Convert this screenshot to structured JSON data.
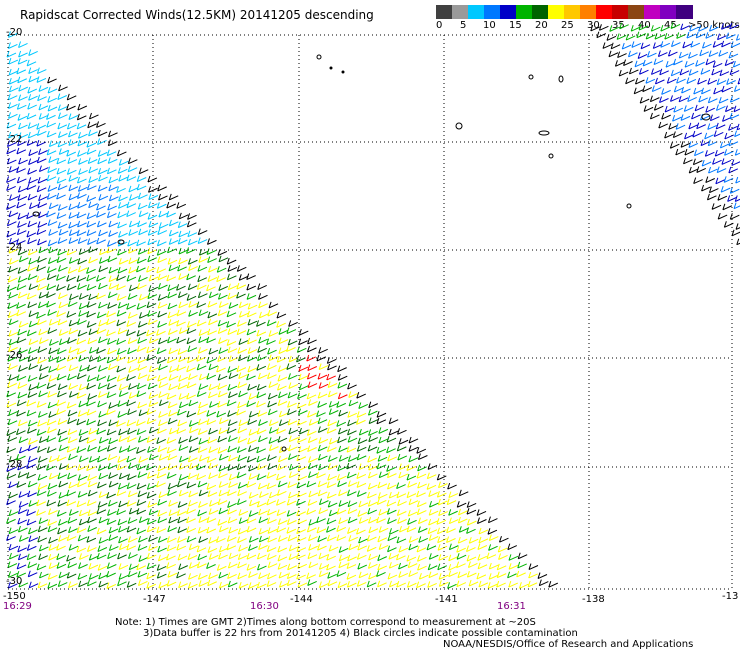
{
  "title": "Rapidscat Corrected Winds(12.5KM) 20141205 descending",
  "legend": {
    "colors": [
      "#404040",
      "#9a9a9a",
      "#00c8ff",
      "#0078ff",
      "#0000c8",
      "#00b400",
      "#006400",
      "#ffff00",
      "#ffc800",
      "#ff8000",
      "#ff0000",
      "#c80000",
      "#8b4513",
      "#c000c0",
      "#8000c0",
      "#400080"
    ],
    "tick_labels": [
      "0",
      "5",
      "10",
      "15",
      "20",
      "25",
      "30",
      "35",
      "40",
      "45",
      ">50 knots"
    ]
  },
  "axes": {
    "lat_labels": [
      "-20",
      "-22",
      "-24",
      "-26",
      "-28",
      "-30"
    ],
    "lon_labels": [
      "-150",
      "-147",
      "-144",
      "-141",
      "-138",
      "-13"
    ],
    "time_labels": [
      "16:29",
      "16:30",
      "16:31"
    ]
  },
  "notes": {
    "line1": "Note: 1) Times are GMT 2)Times along bottom correspond to measurement at ~20S",
    "line2": "3)Data buffer is 22 hrs from 20141205 4) Black circles indicate possible contamination",
    "credit": "NOAA/NESDIS/Office of Research and Applications"
  },
  "colors": {
    "grid": "#000000",
    "time_text": "#800080"
  },
  "icons": [
    "wind-barb-icon",
    "island-outline-icon"
  ]
}
